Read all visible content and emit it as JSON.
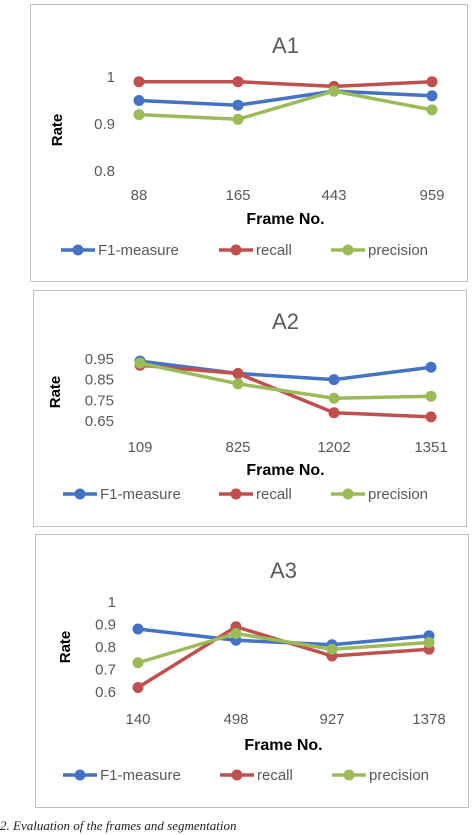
{
  "caption": "2. Evaluation of the frames and segmentation",
  "colors": {
    "F1-measure": "#4472c4",
    "recall": "#c0504d",
    "precision": "#9bbb59"
  },
  "chart_data": [
    {
      "type": "line",
      "title": "A1",
      "xlabel": "Frame No.",
      "ylabel": "Rate",
      "categories": [
        "88",
        "165",
        "443",
        "959"
      ],
      "ylim": [
        0.8,
        1.0
      ],
      "yticks": [
        0.8,
        0.9,
        1.0
      ],
      "ytick_labels": [
        "0.8",
        "0.9",
        "1"
      ],
      "grid": false,
      "legend": "bottom",
      "series": [
        {
          "name": "F1-measure",
          "values": [
            0.95,
            0.94,
            0.97,
            0.96
          ]
        },
        {
          "name": "recall",
          "values": [
            0.99,
            0.99,
            0.98,
            0.99
          ]
        },
        {
          "name": "precision",
          "values": [
            0.92,
            0.91,
            0.97,
            0.93
          ]
        }
      ]
    },
    {
      "type": "line",
      "title": "A2",
      "xlabel": "Frame No.",
      "ylabel": "Rate",
      "categories": [
        "109",
        "825",
        "1202",
        "1351"
      ],
      "ylim": [
        0.65,
        0.95
      ],
      "yticks": [
        0.65,
        0.75,
        0.85,
        0.95
      ],
      "ytick_labels": [
        "0.65",
        "0.75",
        "0.85",
        "0.95"
      ],
      "grid": false,
      "legend": "bottom",
      "series": [
        {
          "name": "F1-measure",
          "values": [
            0.94,
            0.88,
            0.85,
            0.91
          ]
        },
        {
          "name": "recall",
          "values": [
            0.92,
            0.88,
            0.69,
            0.67
          ]
        },
        {
          "name": "precision",
          "values": [
            0.93,
            0.83,
            0.76,
            0.77
          ]
        }
      ]
    },
    {
      "type": "line",
      "title": "A3",
      "xlabel": "Frame No.",
      "ylabel": "Rate",
      "categories": [
        "140",
        "498",
        "927",
        "1378"
      ],
      "ylim": [
        0.6,
        1.0
      ],
      "yticks": [
        0.6,
        0.7,
        0.8,
        0.9,
        1.0
      ],
      "ytick_labels": [
        "0.6",
        "0.7",
        "0.8",
        "0.9",
        "1"
      ],
      "grid": false,
      "legend": "bottom",
      "series": [
        {
          "name": "F1-measure",
          "values": [
            0.88,
            0.83,
            0.81,
            0.85
          ]
        },
        {
          "name": "recall",
          "values": [
            0.62,
            0.89,
            0.76,
            0.79
          ]
        },
        {
          "name": "precision",
          "values": [
            0.73,
            0.86,
            0.79,
            0.82
          ]
        }
      ]
    }
  ]
}
